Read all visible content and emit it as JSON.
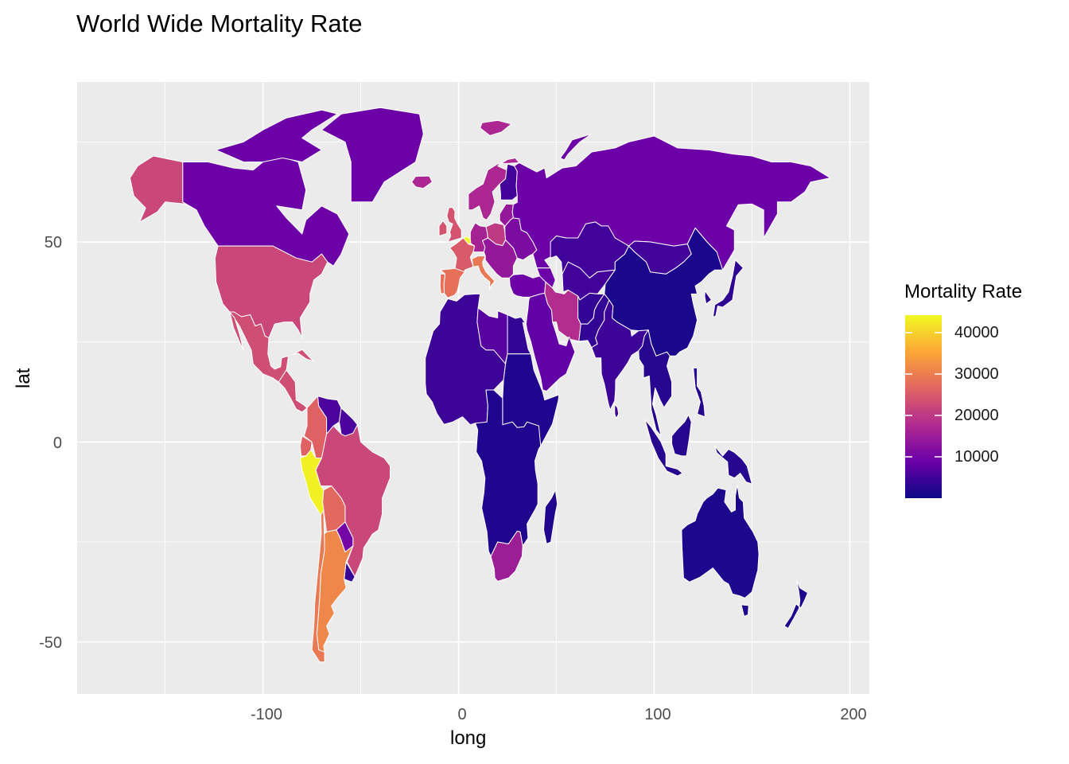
{
  "chart": {
    "title": "World Wide Mortality Rate",
    "xlabel": "long",
    "ylabel": "lat",
    "x_ticks": [
      "-100",
      "0",
      "100",
      "200"
    ],
    "y_ticks": [
      "50",
      "0",
      "-50"
    ],
    "legend": {
      "title": "Mortality Rate",
      "ticks": [
        "40000",
        "30000",
        "20000",
        "10000"
      ]
    }
  },
  "colors": {
    "panel_bg": "#EBEBEB",
    "grid": "#FFFFFF",
    "country_border": "#FFFFFF",
    "scale": [
      "#0D0887",
      "#6A00A8",
      "#B12A90",
      "#E16462",
      "#FCA636",
      "#F0F921"
    ]
  },
  "chart_data": {
    "type": "choropleth",
    "title": "World Wide Mortality Rate",
    "xlabel": "long",
    "ylabel": "lat",
    "xlim": [
      -195,
      210
    ],
    "ylim": [
      -63,
      90
    ],
    "legend_position": "right",
    "color_scale": {
      "name": "Mortality Rate",
      "palette": "plasma",
      "range": [
        0,
        44000
      ],
      "breaks": [
        10000,
        20000,
        30000,
        40000
      ]
    },
    "regions": [
      {
        "name": "Alaska (USA)",
        "value": 22000
      },
      {
        "name": "Canada",
        "value": 9000
      },
      {
        "name": "United States",
        "value": 22000
      },
      {
        "name": "Mexico",
        "value": 23000
      },
      {
        "name": "Colombia",
        "value": 26000
      },
      {
        "name": "Venezuela",
        "value": 6000
      },
      {
        "name": "Peru",
        "value": 43000
      },
      {
        "name": "Brazil",
        "value": 22000
      },
      {
        "name": "Bolivia",
        "value": 27000
      },
      {
        "name": "Paraguay",
        "value": 10000
      },
      {
        "name": "Uruguay",
        "value": 4000
      },
      {
        "name": "Argentina",
        "value": 31000
      },
      {
        "name": "Chile",
        "value": 29000
      },
      {
        "name": "Greenland",
        "value": 9000
      },
      {
        "name": "Scandinavia",
        "value": 17000
      },
      {
        "name": "Finland",
        "value": 5000
      },
      {
        "name": "United Kingdom",
        "value": 24000
      },
      {
        "name": "France",
        "value": 25000
      },
      {
        "name": "Spain",
        "value": 28000
      },
      {
        "name": "Belgium",
        "value": 44000
      },
      {
        "name": "Italy",
        "value": 29000
      },
      {
        "name": "Germany",
        "value": 16000
      },
      {
        "name": "Poland",
        "value": 20000
      },
      {
        "name": "Eastern Europe",
        "value": 14000
      },
      {
        "name": "Ukraine",
        "value": 11000
      },
      {
        "name": "Russia",
        "value": 9000
      },
      {
        "name": "Kazakhstan",
        "value": 5000
      },
      {
        "name": "Turkey",
        "value": 9000
      },
      {
        "name": "Iran",
        "value": 18000
      },
      {
        "name": "Middle East",
        "value": 8000
      },
      {
        "name": "India",
        "value": 4500
      },
      {
        "name": "Pakistan",
        "value": 3500
      },
      {
        "name": "China",
        "value": 1200
      },
      {
        "name": "Southeast Asia",
        "value": 2500
      },
      {
        "name": "Libya",
        "value": 7000
      },
      {
        "name": "Egypt",
        "value": 3500
      },
      {
        "name": "Northern Africa",
        "value": 4500
      },
      {
        "name": "Sub-Saharan Africa",
        "value": 1800
      },
      {
        "name": "South Africa",
        "value": 15000
      },
      {
        "name": "Australia",
        "value": 1500
      },
      {
        "name": "New Zealand",
        "value": 1500
      },
      {
        "name": "Japan",
        "value": 3000
      }
    ]
  }
}
